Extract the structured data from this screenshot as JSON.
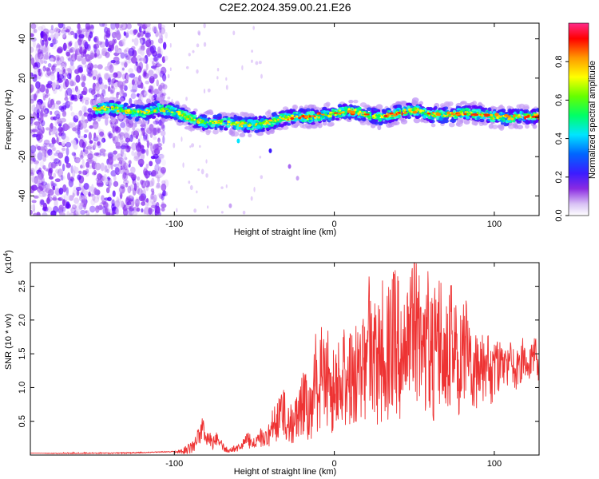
{
  "title": "C2E2.2024.359.00.21.E26",
  "chart_data": [
    {
      "type": "heatmap",
      "xlabel": "Height of straight line (km)",
      "ylabel": "Frequency (Hz)",
      "xlim": [
        -190,
        128
      ],
      "ylim": [
        -50,
        48
      ],
      "xticks": [
        -100,
        0,
        100
      ],
      "xtick_labels": [
        "-100",
        "0",
        "100"
      ],
      "yticks": [
        -40,
        -20,
        0,
        20,
        40
      ],
      "ytick_labels": [
        "-40",
        "-20",
        "0",
        "20",
        "40"
      ],
      "ridge": {
        "x": [
          -150,
          -140,
          -130,
          -120,
          -110,
          -100,
          -90,
          -80,
          -70,
          -60,
          -50,
          -40,
          -30,
          -20,
          -10,
          0,
          10,
          20,
          30,
          40,
          50,
          60,
          70,
          80,
          90,
          100,
          110,
          120,
          128
        ],
        "y": [
          4,
          4,
          3.5,
          3,
          4,
          2,
          0,
          -2,
          -3,
          -4,
          -3,
          -2,
          -1,
          0,
          1.5,
          2,
          2.5,
          1.5,
          1,
          2,
          3,
          2,
          2,
          1.5,
          1,
          1,
          0.5,
          0,
          0
        ]
      },
      "colorbar": {
        "label": "Normalized spectral amplitude",
        "range": [
          0,
          1
        ],
        "ticks": [
          0.0,
          0.2,
          0.4,
          0.6,
          0.8
        ],
        "tick_labels": [
          "0.0",
          "0.2",
          "0.4",
          "0.6",
          "0.8"
        ]
      }
    },
    {
      "type": "line",
      "xlabel": "Height of straight line (km)",
      "ylabel": "SNR (10 * v/v)",
      "scale_label": "(x10^4)",
      "xlim": [
        -190,
        128
      ],
      "ylim": [
        0,
        2.85
      ],
      "xticks": [
        -100,
        0,
        100
      ],
      "xtick_labels": [
        "-100",
        "0",
        "100"
      ],
      "yticks": [
        0.5,
        1.0,
        1.5,
        2.0,
        2.5
      ],
      "ytick_labels": [
        "0.5",
        "1.0",
        "1.5",
        "2.0",
        "2.5"
      ],
      "series": [
        {
          "color": "#ee3333",
          "x": [
            -190,
            -160,
            -130,
            -110,
            -100,
            -95,
            -90,
            -87,
            -84,
            -82,
            -80,
            -78,
            -76,
            -74,
            -72,
            -70,
            -66,
            -62,
            -58,
            -54,
            -50,
            -46,
            -42,
            -40,
            -38,
            -36,
            -34,
            -30,
            -26,
            -22,
            -18,
            -14,
            -12,
            -10,
            -8,
            -6,
            -4,
            -2,
            0,
            4,
            8,
            12,
            16,
            20,
            22,
            26,
            30,
            34,
            38,
            42,
            46,
            50,
            54,
            58,
            62,
            66,
            70,
            74,
            78,
            82,
            86,
            90,
            94,
            98,
            102,
            106,
            110,
            114,
            118,
            122,
            126,
            128
          ],
          "y": [
            0.03,
            0.03,
            0.04,
            0.05,
            0.06,
            0.1,
            0.2,
            0.3,
            0.45,
            0.6,
            0.35,
            0.4,
            0.25,
            0.35,
            0.3,
            0.2,
            0.1,
            0.15,
            0.2,
            0.35,
            0.25,
            0.4,
            0.5,
            0.45,
            0.8,
            0.7,
            1.1,
            0.9,
            0.85,
            1.1,
            1.3,
            1.0,
            1.9,
            1.35,
            2.0,
            1.6,
            2.05,
            1.4,
            1.9,
            1.7,
            2.2,
            1.8,
            2.4,
            2.0,
            2.9,
            2.2,
            2.6,
            2.5,
            2.85,
            2.4,
            2.7,
            2.95,
            2.6,
            2.85,
            2.5,
            2.8,
            2.45,
            2.6,
            2.0,
            2.4,
            2.1,
            1.85,
            1.95,
            1.7,
            1.8,
            1.6,
            1.7,
            1.55,
            1.75,
            1.6,
            1.8,
            1.5
          ],
          "noise": [
            0.0,
            0.02,
            0.02,
            0.01,
            0.02,
            0.1,
            0.2,
            0.25,
            0.3,
            0.3,
            0.3,
            0.28,
            0.22,
            0.2,
            0.18,
            0.14,
            0.08,
            0.1,
            0.15,
            0.25,
            0.2,
            0.3,
            0.35,
            0.4,
            0.6,
            0.55,
            0.8,
            0.75,
            0.7,
            0.85,
            1.0,
            0.9,
            1.3,
            1.1,
            1.5,
            1.3,
            1.6,
            1.2,
            1.5,
            1.4,
            1.7,
            1.5,
            1.8,
            1.7,
            2.1,
            1.9,
            2.1,
            2.0,
            2.2,
            2.0,
            2.2,
            2.3,
            2.1,
            2.2,
            2.0,
            2.2,
            1.9,
            2.0,
            1.5,
            1.7,
            1.4,
            1.2,
            1.1,
            1.0,
            0.9,
            0.7,
            0.7,
            0.6,
            0.6,
            0.5,
            0.5,
            0.5
          ]
        }
      ]
    }
  ]
}
